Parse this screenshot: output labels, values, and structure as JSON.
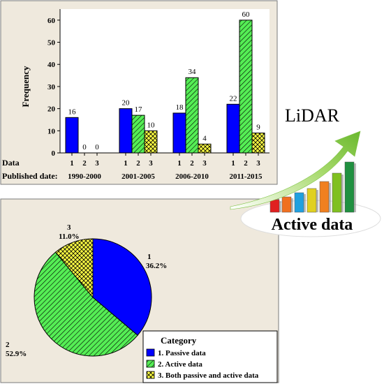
{
  "colors": {
    "panel_bg": "#efe9dd",
    "panel_border": "#7a7a7a",
    "passive": "#0000ff",
    "active": "#55ee55",
    "both": "#ffff44",
    "lidar_arrow": "#7dc242"
  },
  "chart_data": [
    {
      "type": "bar",
      "ylabel": "Frequency",
      "ylim": [
        0,
        65
      ],
      "yticks": [
        0,
        10,
        20,
        30,
        40,
        50,
        60
      ],
      "grid": false,
      "row_labels": {
        "data": "Data",
        "published": "Published date:"
      },
      "categories": [
        "1990-2000",
        "2001-2005",
        "2006-2010",
        "2011-2015"
      ],
      "bar_codes": [
        "1",
        "2",
        "3"
      ],
      "series": [
        {
          "values": [
            16,
            20,
            18,
            22
          ],
          "fill": "solid",
          "color": "#0000ff"
        },
        {
          "values": [
            0,
            17,
            34,
            60
          ],
          "fill": "hatch",
          "color": "#55ee55"
        },
        {
          "values": [
            0,
            10,
            4,
            9
          ],
          "fill": "crosshatch",
          "color": "#ffff44"
        }
      ]
    },
    {
      "type": "pie",
      "legend_title": "Category",
      "legend_placement": "bottom-right",
      "slices": [
        {
          "code": "1",
          "label": "1. Passive data",
          "value": 36.2,
          "pct": "36.2%",
          "color": "#0000ff",
          "fill": "solid"
        },
        {
          "code": "2",
          "label": "2. Active data",
          "value": 52.9,
          "pct": "52.9%",
          "color": "#55ee55",
          "fill": "hatch"
        },
        {
          "code": "3",
          "label": "3. Both passive and active data",
          "value": 11.0,
          "pct": "11.0%",
          "color": "#ffff44",
          "fill": "crosshatch"
        }
      ]
    }
  ],
  "illustration": {
    "lidar_label": "LiDAR",
    "active_label": "Active data",
    "bar_colors": [
      "#e02020",
      "#f07020",
      "#20a0e0",
      "#e0d020",
      "#f08020",
      "#80c020",
      "#209040"
    ]
  }
}
